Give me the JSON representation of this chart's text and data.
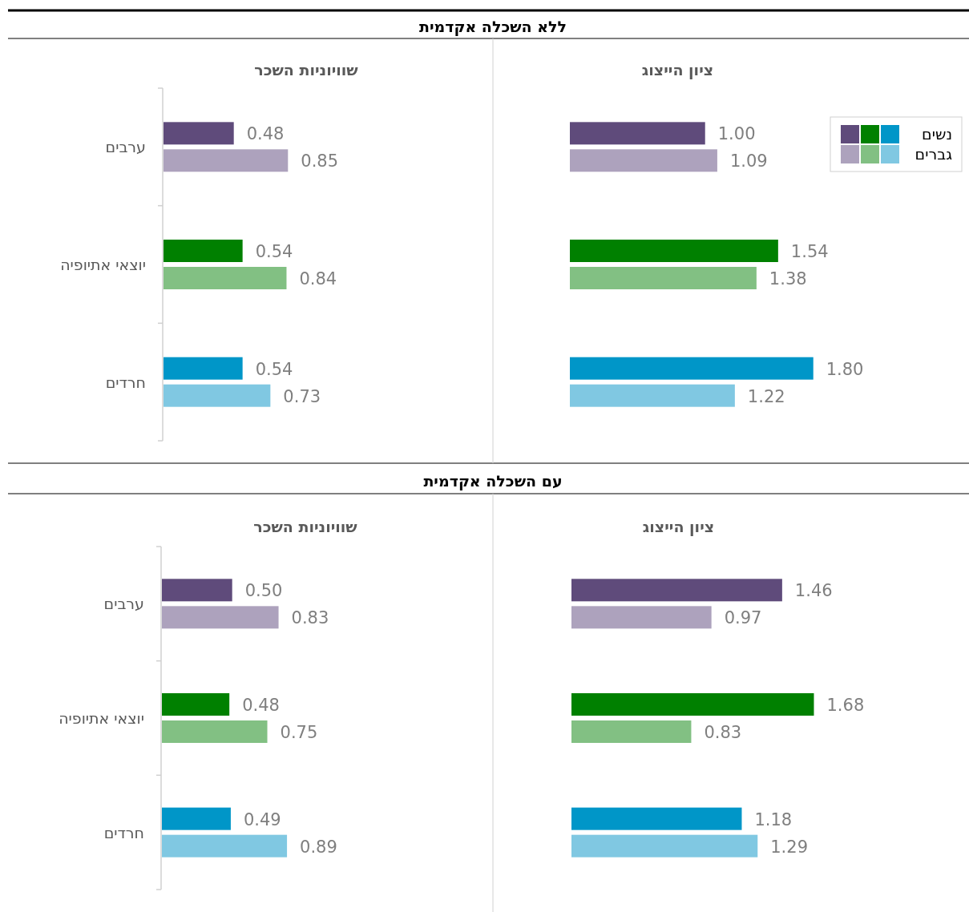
{
  "chart_data": [
    {
      "type": "bar",
      "orientation": "horizontal",
      "title": "שוויוניות השכר",
      "annotations": [
        "ללא השכלה אקדמית"
      ],
      "categories": [
        "ערבים",
        "יוצאי אתיופיה",
        "חרדים"
      ],
      "series": [
        {
          "colors": [
            "#5f4b7b",
            "#008000",
            "#0096c8"
          ],
          "values": [
            0.48,
            0.54,
            0.54
          ],
          "value_labels": [
            "0.48",
            "0.54",
            "0.54"
          ]
        },
        {
          "colors": [
            "#ada2bd",
            "#82c083",
            "#80c8e2"
          ],
          "values": [
            0.85,
            0.84,
            0.73
          ],
          "value_labels": [
            "0.85",
            "0.84",
            "0.73"
          ]
        }
      ]
    },
    {
      "type": "bar",
      "orientation": "horizontal",
      "title": "ציון הייצוג",
      "categories": [
        null,
        null,
        null
      ],
      "tick_labels": false,
      "series": [
        {
          "name": "נשים",
          "colors": [
            "#5f4b7b",
            "#008000",
            "#0096c8"
          ],
          "values": [
            1.0,
            1.54,
            1.8
          ],
          "value_labels": [
            "1.00",
            "1.54",
            "1.80"
          ]
        },
        {
          "name": "גברים",
          "colors": [
            "#ada2bd",
            "#82c083",
            "#80c8e2"
          ],
          "values": [
            1.09,
            1.38,
            1.22
          ],
          "value_labels": [
            "1.09",
            "1.38",
            "1.22"
          ]
        }
      ],
      "legend": "top right"
    },
    {
      "type": "bar",
      "orientation": "horizontal",
      "title": "שוויוניות השכר",
      "annotations": [
        "עם השכלה אקדמית"
      ],
      "categories": [
        "ערבים",
        "יוצאי אתיופיה",
        "חרדים"
      ],
      "series": [
        {
          "colors": [
            "#5f4b7b",
            "#008000",
            "#0096c8"
          ],
          "values": [
            0.5,
            0.48,
            0.49
          ],
          "value_labels": [
            "0.50",
            "0.48",
            "0.49"
          ]
        },
        {
          "colors": [
            "#ada2bd",
            "#82c083",
            "#80c8e2"
          ],
          "values": [
            0.83,
            0.75,
            0.89
          ],
          "value_labels": [
            "0.83",
            "0.75",
            "0.89"
          ]
        }
      ]
    },
    {
      "type": "bar",
      "orientation": "horizontal",
      "title": "ציון הייצוג",
      "categories": [
        null,
        null,
        null
      ],
      "tick_labels": false,
      "series": [
        {
          "colors": [
            "#5f4b7b",
            "#008000",
            "#0096c8"
          ],
          "values": [
            1.46,
            1.68,
            1.18
          ],
          "value_labels": [
            "1.46",
            "1.68",
            "1.18"
          ]
        },
        {
          "colors": [
            "#ada2bd",
            "#82c083",
            "#80c8e2"
          ],
          "values": [
            0.97,
            0.83,
            1.29
          ],
          "value_labels": [
            "0.97",
            "0.83",
            "1.29"
          ]
        }
      ]
    }
  ]
}
